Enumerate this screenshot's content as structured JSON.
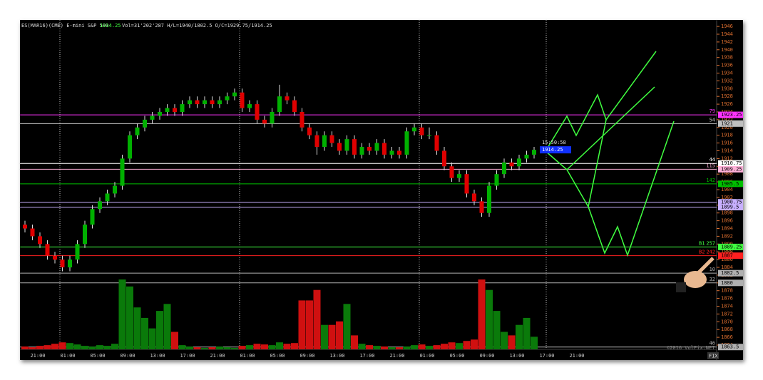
{
  "chart_data": {
    "type": "candlestick",
    "header": {
      "instrument": "ES(MAR16)(CME) E-mini S&P 500",
      "last": 1914.25,
      "stats": "Vol=31'202'287 H/L=1940/1802.5 O/C=1929.75/1914.25"
    },
    "current_time": "15:50:58",
    "current_price": 1914.25,
    "ylim": [
      1862.9,
      1947.3
    ],
    "yticks": [
      1864,
      1866,
      1868,
      1870,
      1872,
      1874,
      1876,
      1878,
      1880,
      1882,
      1884,
      1886,
      1888,
      1890,
      1892,
      1894,
      1896,
      1898,
      1900,
      1902,
      1904,
      1906,
      1908,
      1910,
      1912,
      1914,
      1916,
      1918,
      1920,
      1922,
      1924,
      1926,
      1928,
      1930,
      1932,
      1934,
      1936,
      1938,
      1940,
      1942,
      1944,
      1946
    ],
    "xticks": [
      "21:00",
      "01:00",
      "05:00",
      "09:00",
      "13:00",
      "17:00",
      "21:00",
      "01:00",
      "05:00",
      "09:00",
      "13:00",
      "17:00",
      "21:00",
      "01:00",
      "05:00",
      "09:00",
      "13:00",
      "17:00",
      "21:00"
    ],
    "up_color": "#00b000",
    "down_color": "#e00000",
    "candles": [
      [
        1895,
        1896,
        1893,
        1894
      ],
      [
        1894,
        1895,
        1891,
        1892
      ],
      [
        1892,
        1893,
        1889,
        1890
      ],
      [
        1890,
        1891,
        1886,
        1887
      ],
      [
        1887,
        1888,
        1885,
        1886
      ],
      [
        1886,
        1887,
        1883,
        1884
      ],
      [
        1884,
        1887,
        1883,
        1886
      ],
      [
        1886,
        1891,
        1885,
        1890
      ],
      [
        1890,
        1896,
        1889,
        1895
      ],
      [
        1895,
        1900,
        1894,
        1899
      ],
      [
        1899,
        1902,
        1898,
        1901
      ],
      [
        1901,
        1904,
        1900,
        1903
      ],
      [
        1903,
        1906,
        1902,
        1905
      ],
      [
        1905,
        1913,
        1904,
        1912
      ],
      [
        1912,
        1919,
        1911,
        1918
      ],
      [
        1918,
        1921,
        1917,
        1920
      ],
      [
        1920,
        1923,
        1919,
        1922
      ],
      [
        1922,
        1924,
        1921,
        1923
      ],
      [
        1923,
        1925,
        1922,
        1924
      ],
      [
        1924,
        1926,
        1923,
        1925
      ],
      [
        1925,
        1926,
        1923,
        1924
      ],
      [
        1924,
        1927,
        1923,
        1926
      ],
      [
        1926,
        1928,
        1925,
        1927
      ],
      [
        1927,
        1928,
        1925,
        1926
      ],
      [
        1926,
        1928,
        1925,
        1927
      ],
      [
        1927,
        1928,
        1925,
        1926
      ],
      [
        1926,
        1928,
        1925,
        1927
      ],
      [
        1927,
        1929,
        1926,
        1928
      ],
      [
        1928,
        1930,
        1927,
        1929
      ],
      [
        1929,
        1930,
        1924,
        1925
      ],
      [
        1925,
        1927,
        1924,
        1926
      ],
      [
        1926,
        1927,
        1921,
        1922
      ],
      [
        1922,
        1923,
        1920,
        1921
      ],
      [
        1921,
        1925,
        1920,
        1924
      ],
      [
        1924,
        1931,
        1923,
        1928
      ],
      [
        1928,
        1929,
        1926,
        1927
      ],
      [
        1927,
        1928,
        1923,
        1924
      ],
      [
        1924,
        1925,
        1919,
        1920
      ],
      [
        1920,
        1921,
        1917,
        1918
      ],
      [
        1918,
        1919,
        1913,
        1915
      ],
      [
        1915,
        1919,
        1914,
        1918
      ],
      [
        1918,
        1919,
        1915,
        1916
      ],
      [
        1916,
        1917,
        1913,
        1914
      ],
      [
        1914,
        1918,
        1913,
        1917
      ],
      [
        1917,
        1918,
        1912,
        1913
      ],
      [
        1913,
        1916,
        1912,
        1915
      ],
      [
        1915,
        1916,
        1913,
        1914
      ],
      [
        1914,
        1917,
        1913,
        1916
      ],
      [
        1916,
        1917,
        1912,
        1913
      ],
      [
        1913,
        1915,
        1912,
        1914
      ],
      [
        1914,
        1915,
        1912,
        1913
      ],
      [
        1913,
        1920,
        1912,
        1919
      ],
      [
        1919,
        1921,
        1918,
        1920
      ],
      [
        1920,
        1921,
        1917,
        1918
      ],
      [
        1918,
        1920,
        1917,
        1918
      ],
      [
        1918,
        1919,
        1913,
        1914
      ],
      [
        1914,
        1915,
        1909,
        1910
      ],
      [
        1910,
        1911,
        1906,
        1907
      ],
      [
        1907,
        1909,
        1906,
        1908
      ],
      [
        1908,
        1909,
        1902,
        1903
      ],
      [
        1903,
        1904,
        1900,
        1901
      ],
      [
        1901,
        1902,
        1897,
        1898
      ],
      [
        1898,
        1906,
        1897,
        1905
      ],
      [
        1905,
        1909,
        1904,
        1908
      ],
      [
        1908,
        1912,
        1907,
        1911
      ],
      [
        1911,
        1912,
        1909,
        1910
      ],
      [
        1910,
        1913,
        1909,
        1912
      ],
      [
        1912,
        1914,
        1911,
        1913
      ],
      [
        1913,
        1915,
        1912,
        1914.25
      ]
    ],
    "volume": [
      4,
      3,
      5,
      6,
      8,
      10,
      9,
      7,
      5,
      4,
      6,
      5,
      8,
      100,
      90,
      60,
      45,
      30,
      55,
      65,
      25,
      6,
      4,
      3,
      2,
      3,
      4,
      3,
      2,
      5,
      6,
      8,
      7,
      6,
      10,
      8,
      9,
      70,
      70,
      85,
      35,
      35,
      40,
      65,
      20,
      8,
      6,
      5,
      4,
      3,
      3,
      4,
      6,
      7,
      5,
      6,
      8,
      10,
      9,
      12,
      14,
      100,
      85,
      55,
      25,
      20,
      35,
      45,
      18
    ],
    "levels": [
      {
        "value": 1923.25,
        "color": "#ff33ff",
        "count": 79
      },
      {
        "value": 1921,
        "color": "#c0c0c0",
        "count": 54
      },
      {
        "value": 1910.75,
        "color": "#ffffff",
        "count": 44
      },
      {
        "value": 1909.25,
        "color": "#ffb0d8",
        "count": 115
      },
      {
        "value": 1905.5,
        "color": "#00c000",
        "count": 142
      },
      {
        "value": 1900.75,
        "color": "#c8b0ff"
      },
      {
        "value": 1899.5,
        "color": "#c8b0ff"
      },
      {
        "value": 1889.25,
        "color": "#40ff40",
        "count": 257,
        "tag": "B1"
      },
      {
        "value": 1887,
        "color": "#ff2020",
        "count": 242,
        "tag": "B2"
      },
      {
        "value": 1882.5,
        "color": "#b0b0b0",
        "count": 10
      },
      {
        "value": 1880,
        "color": "#b0b0b0",
        "count": 32
      },
      {
        "value": 1863.5,
        "color": "#b0b0b0",
        "count": 46
      }
    ],
    "watermark": "©2016 VolFix.NET",
    "corner": "FIX"
  }
}
